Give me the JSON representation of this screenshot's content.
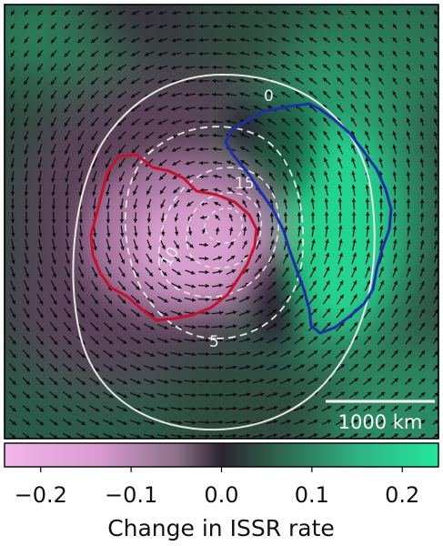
{
  "chart_data": {
    "type": "heatmap",
    "title": "",
    "colorbar": {
      "label": "Change in ISSR rate",
      "range": [
        -0.24,
        0.24
      ],
      "ticks": [
        -0.2,
        -0.1,
        0.0,
        0.1,
        0.2
      ],
      "tick_labels": [
        "−0.2",
        "−0.1",
        "0.0",
        "0.1",
        "0.2"
      ],
      "colors": [
        "#f3b6ea",
        "#d89ad0",
        "#8a6f86",
        "#2b2330",
        "#2e5f4a",
        "#2fb486",
        "#22e89a"
      ]
    },
    "scale_bar": {
      "label": "1000 km"
    },
    "contours": [
      {
        "label": "0",
        "style": "solid",
        "color": "#e8e8e8"
      },
      {
        "label": "5",
        "style": "dashed",
        "color": "#e8e8e8"
      },
      {
        "label": "10",
        "style": "dashed",
        "color": "#e8e8e8"
      },
      {
        "label": "15",
        "style": "dashed",
        "color": "#e8e8e8"
      }
    ],
    "regions": [
      {
        "color": "#c8102e"
      },
      {
        "color": "#1f2fa8"
      }
    ],
    "grid": false
  }
}
